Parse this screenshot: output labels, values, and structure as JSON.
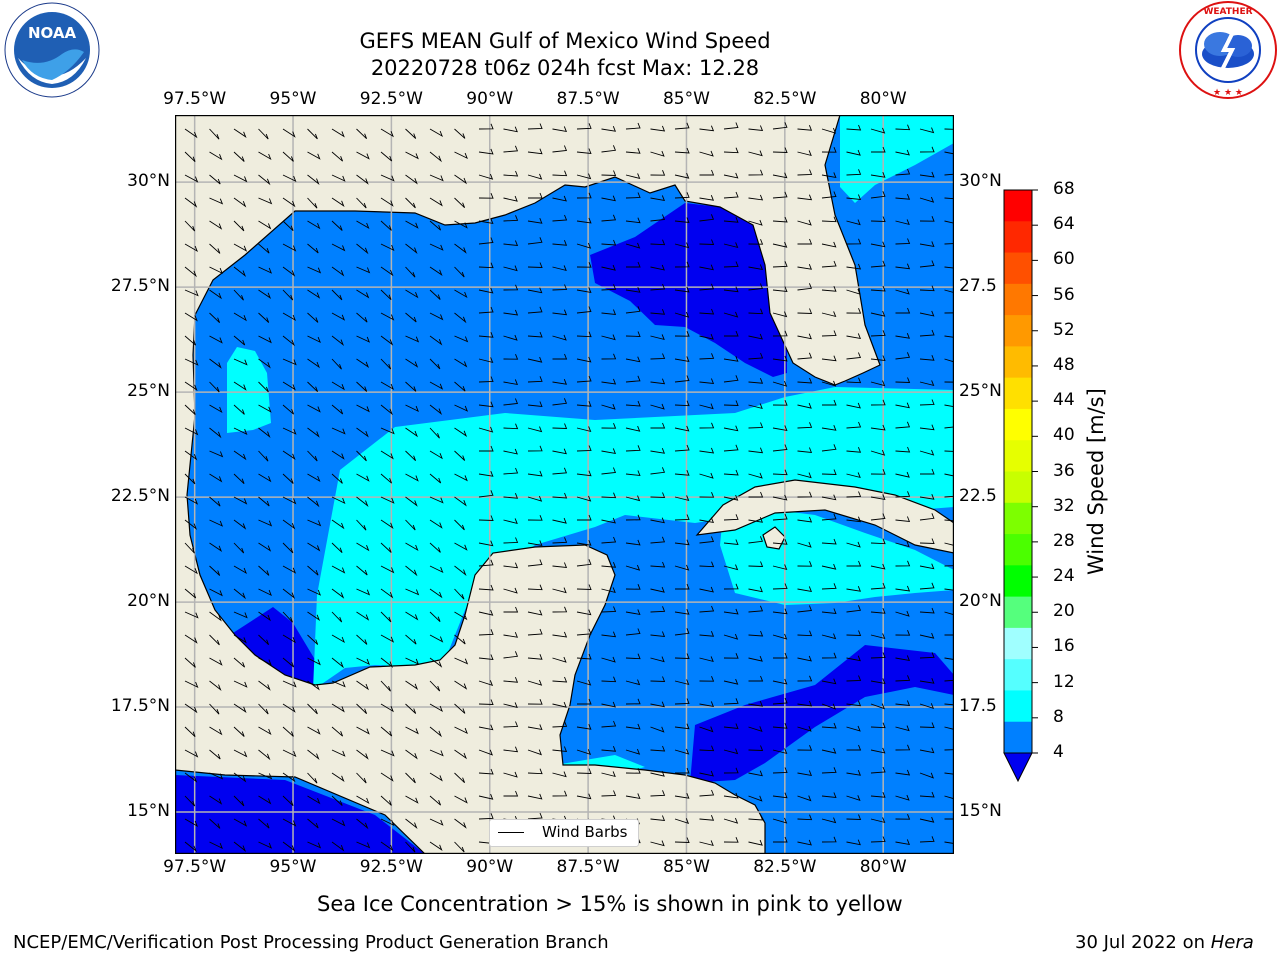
{
  "title": {
    "line1": "GEFS MEAN Gulf of Mexico Wind Speed",
    "line2": "20220728 t06z 024h fcst   Max: 12.28"
  },
  "logos": {
    "left": {
      "icon": "noaa-logo",
      "text": "NOAA",
      "ring_text": "NATIONAL OCEANIC AND ATMOSPHERIC ADMINISTRATION · U.S. DEPARTMENT OF COMMERCE"
    },
    "right": {
      "icon": "nws-logo",
      "ring_text": "NATIONAL WEATHER SERVICE"
    }
  },
  "map": {
    "lon_labels": [
      "97.5°W",
      "95°W",
      "92.5°W",
      "90°W",
      "87.5°W",
      "85°W",
      "82.5°W",
      "80°W"
    ],
    "lat_labels_left": [
      "30°N",
      "27.5°N",
      "25°N",
      "22.5°N",
      "20°N",
      "17.5°N",
      "15°N"
    ],
    "lat_labels_right": [
      "30°N",
      "27.5",
      "25°N",
      "22.5",
      "20°N",
      "17.5",
      "15°N"
    ],
    "lon_values": [
      -97.5,
      -95,
      -92.5,
      -90,
      -87.5,
      -85,
      -82.5,
      -80
    ],
    "lat_values": [
      30,
      27.5,
      25,
      22.5,
      20,
      17.5,
      15
    ],
    "extent": {
      "lon": [
        -98,
        -78.2
      ],
      "lat": [
        14,
        31.6
      ]
    },
    "legend_label": "Wind Barbs",
    "colors": {
      "land": "#efedde",
      "level1": "#0080ff",
      "level2": "#00ffff",
      "low": "#0000f0",
      "grid": "#b4b4b4"
    }
  },
  "colorbar": {
    "label": "Wind Speed [m/s]",
    "ticks": [
      "68",
      "64",
      "60",
      "56",
      "52",
      "48",
      "44",
      "40",
      "36",
      "32",
      "28",
      "24",
      "20",
      "16",
      "12",
      "8",
      "4"
    ],
    "colors": [
      "#ff0000",
      "#ff2800",
      "#ff5000",
      "#ff7800",
      "#ff9900",
      "#ffbb00",
      "#ffe000",
      "#ffff00",
      "#e6ff00",
      "#c8ff00",
      "#7dff00",
      "#4bff00",
      "#00ff00",
      "#55ff7d",
      "#a0ffff",
      "#55ffff",
      "#00ffff",
      "#0080ff"
    ],
    "extend_color": "#0000f0"
  },
  "caption": "Sea Ice Concentration > 15% is shown in pink to yellow",
  "footer": {
    "left": "NCEP/EMC/Verification Post Processing Product Generation Branch",
    "right_date": "30 Jul 2022 on ",
    "right_machine": "Hera"
  }
}
